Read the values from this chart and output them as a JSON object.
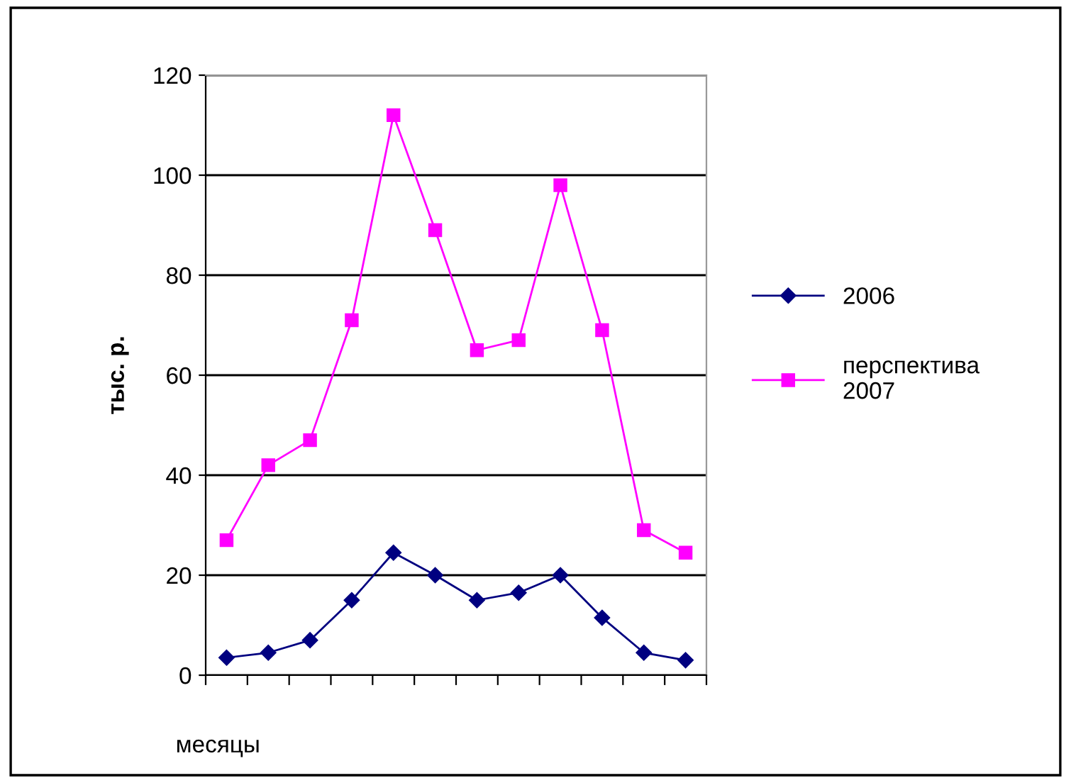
{
  "chart_data": {
    "type": "line",
    "ylabel": "тыс. р.",
    "xlabel": "месяцы",
    "categories": [
      null,
      null,
      null,
      null,
      null,
      null,
      null,
      null,
      null,
      null,
      null,
      null
    ],
    "series": [
      {
        "name": "2006",
        "color": "#000080",
        "marker": "diamond",
        "values": [
          3.5,
          4.5,
          7,
          15,
          24.5,
          20,
          15,
          16.5,
          20,
          11.5,
          4.5,
          3
        ]
      },
      {
        "name": "перспектива 2007",
        "color": "#ff00ff",
        "marker": "square",
        "values": [
          27,
          42,
          47,
          71,
          112,
          89,
          65,
          67,
          98,
          69,
          29,
          24.5
        ]
      }
    ],
    "ylim": [
      0,
      120
    ],
    "yticks": [
      0,
      20,
      40,
      60,
      80,
      100,
      120
    ],
    "grid": "y",
    "legend": "right"
  }
}
